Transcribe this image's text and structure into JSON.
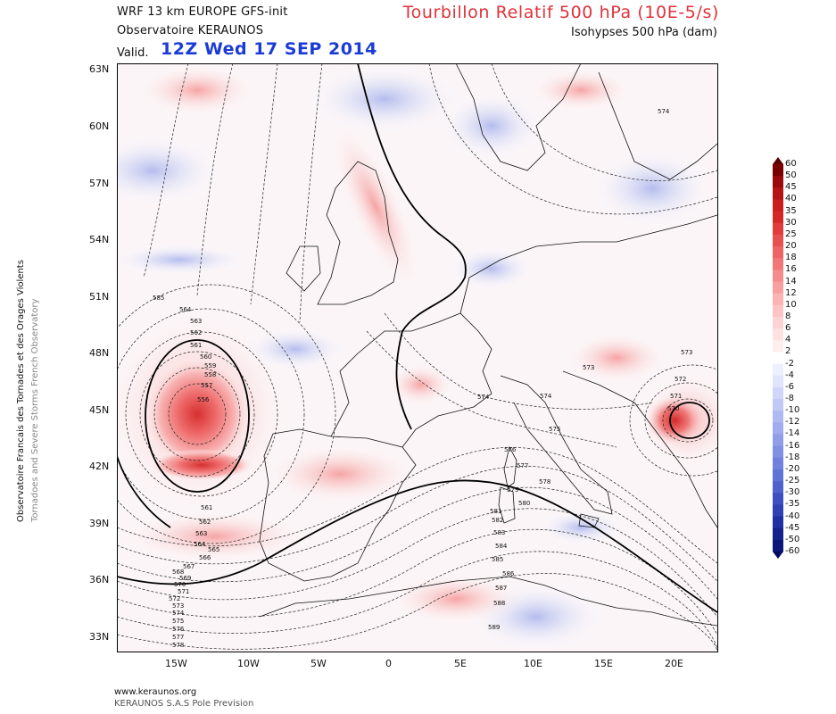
{
  "header": {
    "model": "WRF 13 km EUROPE   GFS-init",
    "observatory": "Observatoire KERAUNOS",
    "valid_label": "Valid.",
    "valid_date": "12Z Wed 17 SEP 2014",
    "title": "Tourbillon Relatif 500 hPa (10E-5/s)",
    "subtitle": "Isohypses 500 hPa (dam)"
  },
  "sidebar": {
    "line1": "Observatoire Francais des Tornades et des Orages Violents",
    "line2": "Tornadoes and Severe Storms French Observatory"
  },
  "axes": {
    "lat_labels": [
      "63N",
      "60N",
      "57N",
      "54N",
      "51N",
      "48N",
      "45N",
      "42N",
      "39N",
      "36N",
      "33N"
    ],
    "lon_labels": [
      "15W",
      "10W",
      "5W",
      "0",
      "5E",
      "10E",
      "15E",
      "20E"
    ]
  },
  "colorbar": {
    "labels": [
      "60",
      "50",
      "45",
      "40",
      "35",
      "30",
      "25",
      "20",
      "18",
      "16",
      "14",
      "12",
      "10",
      "8",
      "6",
      "4",
      "2",
      "-2",
      "-4",
      "-6",
      "-8",
      "-10",
      "-12",
      "-14",
      "-16",
      "-18",
      "-20",
      "-25",
      "-30",
      "-35",
      "-40",
      "-45",
      "-50",
      "-60"
    ],
    "colors": [
      "#7a0000",
      "#9b0a0a",
      "#b41414",
      "#c81e1e",
      "#d42828",
      "#e03c3c",
      "#e85050",
      "#ee6464",
      "#f27878",
      "#f58c8c",
      "#f8a0a0",
      "#fab4b4",
      "#fcc4c4",
      "#fdd4d4",
      "#fee2e2",
      "#ffeeee",
      "#ffffff",
      "#eef0ff",
      "#e0e4fc",
      "#d0d6fa",
      "#c0c8f6",
      "#b0baf2",
      "#a0acee",
      "#909ee8",
      "#8090e2",
      "#7082dc",
      "#6074d6",
      "#4f62cc",
      "#3e50c0",
      "#2f40b0",
      "#2030a0",
      "#14228c",
      "#0a1678"
    ],
    "top_color": "#5a0000",
    "bottom_color": "#000a60"
  },
  "contours": {
    "atlantic_low": [
      "585",
      "564",
      "563",
      "562",
      "561",
      "560",
      "559",
      "558",
      "557",
      "556"
    ],
    "atlantic_south": [
      "561",
      "562",
      "563",
      "564",
      "565",
      "566",
      "567",
      "568",
      "569",
      "570",
      "571",
      "572",
      "573",
      "574",
      "575",
      "576",
      "577",
      "578"
    ],
    "balkan_low": [
      "570",
      "571",
      "572",
      "573"
    ],
    "central": [
      "573",
      "574",
      "574",
      "575",
      "576",
      "577",
      "578",
      "579",
      "580"
    ],
    "ridge": [
      "581",
      "582",
      "583",
      "584",
      "585",
      "586",
      "587",
      "588",
      "589"
    ],
    "north": [
      "574"
    ]
  },
  "footer": {
    "url": "www.keraunos.org",
    "company": "KERAUNOS S.A.S Pole Prevision"
  }
}
